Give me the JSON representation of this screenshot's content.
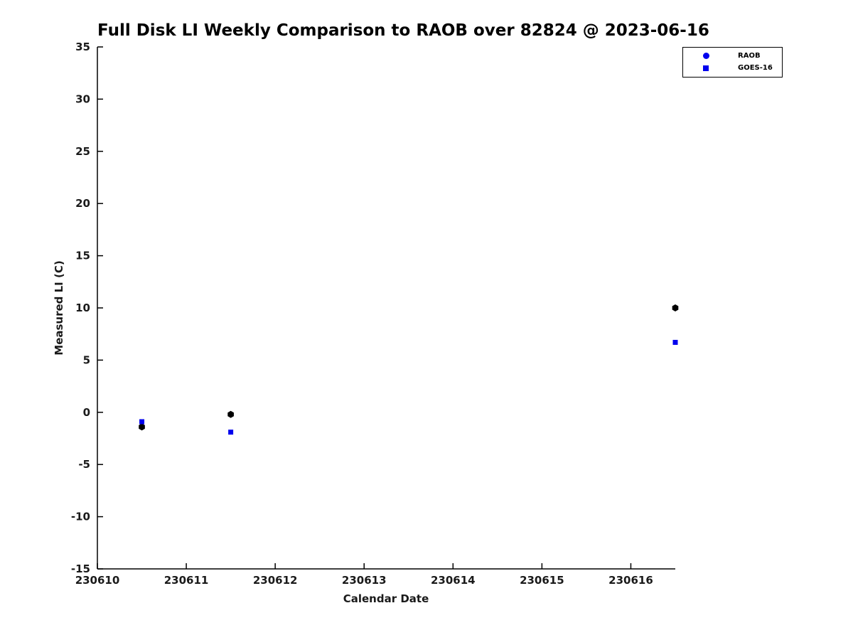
{
  "chart_data": {
    "type": "scatter",
    "title": "Full Disk LI Weekly Comparison to RAOB over 82824 @ 2023-06-16",
    "xlabel": "Calendar Date",
    "ylabel": "Measured LI (C)",
    "xlim": [
      230610,
      230616.5
    ],
    "ylim": [
      -15,
      35
    ],
    "xticks": [
      "230610",
      "230611",
      "230612",
      "230613",
      "230614",
      "230615",
      "230616"
    ],
    "yticks": [
      "-15",
      "-10",
      "-5",
      "0",
      "5",
      "10",
      "15",
      "20",
      "25",
      "30",
      "35"
    ],
    "grid": false,
    "legend_position": "top-right",
    "axis_color": "#000000",
    "series": [
      {
        "name": "RAOB",
        "marker": "hexagon",
        "color": "#000000",
        "legend_shape": "circle",
        "legend_color": "#0000ee",
        "points": [
          {
            "x": 230610.5,
            "y": -1.4
          },
          {
            "x": 230611.5,
            "y": -0.2
          },
          {
            "x": 230616.5,
            "y": 10.0
          }
        ]
      },
      {
        "name": "GOES-16",
        "marker": "square",
        "color": "#0000ee",
        "legend_shape": "square",
        "legend_color": "#0000ee",
        "points": [
          {
            "x": 230610.5,
            "y": -0.9
          },
          {
            "x": 230611.5,
            "y": -1.9
          },
          {
            "x": 230616.5,
            "y": 6.7
          }
        ]
      }
    ]
  }
}
